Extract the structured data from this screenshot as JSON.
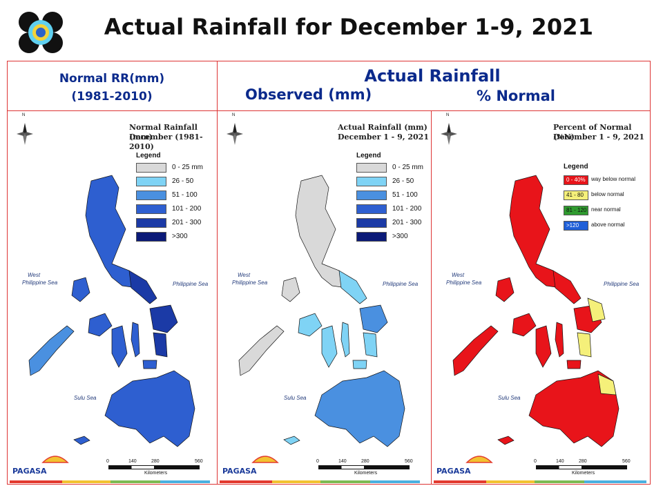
{
  "header": {
    "title": "Actual Rainfall for December 1-9, 2021"
  },
  "columns": {
    "normal_label_1": "Normal RR(mm)",
    "normal_label_2": "(1981-2010)",
    "actual_label": "Actual Rainfall",
    "observed_label": "Observed (mm)",
    "percent_label": "% Normal"
  },
  "maps": [
    {
      "title_1": "Normal Rainfall (mm)",
      "title_2": "December (1981-2010)",
      "legend_title": "Legend",
      "legend": [
        {
          "label": "0 - 25 mm",
          "color": "#d9d9d9"
        },
        {
          "label": "26 - 50",
          "color": "#7fd3f5"
        },
        {
          "label": "51 - 100",
          "color": "#4a90e0"
        },
        {
          "label": "101 - 200",
          "color": "#2e5fd0"
        },
        {
          "label": "201 - 300",
          "color": "#1b3aa6"
        },
        {
          "label": ">300",
          "color": "#0b1a78"
        }
      ]
    },
    {
      "title_1": "Actual Rainfall (mm)",
      "title_2": "December 1 - 9, 2021",
      "legend_title": "Legend",
      "legend": [
        {
          "label": "0 - 25 mm",
          "color": "#d9d9d9"
        },
        {
          "label": "26 - 50",
          "color": "#7fd3f5"
        },
        {
          "label": "51 - 100",
          "color": "#4a90e0"
        },
        {
          "label": "101 - 200",
          "color": "#2e5fd0"
        },
        {
          "label": "201 - 300",
          "color": "#1b3aa6"
        },
        {
          "label": ">300",
          "color": "#0b1a78"
        }
      ]
    },
    {
      "title_1": "Percent of Normal (%N)",
      "title_2": "December 1 - 9, 2021",
      "legend_title": "Legend",
      "legend": [
        {
          "key": "0 - 40%",
          "label": "way below normal",
          "color": "#e8141a"
        },
        {
          "key": "41 - 80",
          "label": "below normal",
          "color": "#f5f07a"
        },
        {
          "key": "81 - 120",
          "label": "near normal",
          "color": "#2f9b2f"
        },
        {
          "key": ">120",
          "label": "above normal",
          "color": "#1f5fd8"
        }
      ]
    }
  ],
  "seas": {
    "west_1": "West",
    "west_2": "Philippine Sea",
    "east": "Philippine Sea",
    "sulu": "Sulu Sea"
  },
  "scale": {
    "ticks": [
      "0",
      "140",
      "280",
      "560"
    ],
    "unit": "Kilometers"
  },
  "brand": "PAGASA",
  "compass": "N",
  "colors": {
    "frame": "#dd3333",
    "header_text": "#0b2a8c"
  }
}
